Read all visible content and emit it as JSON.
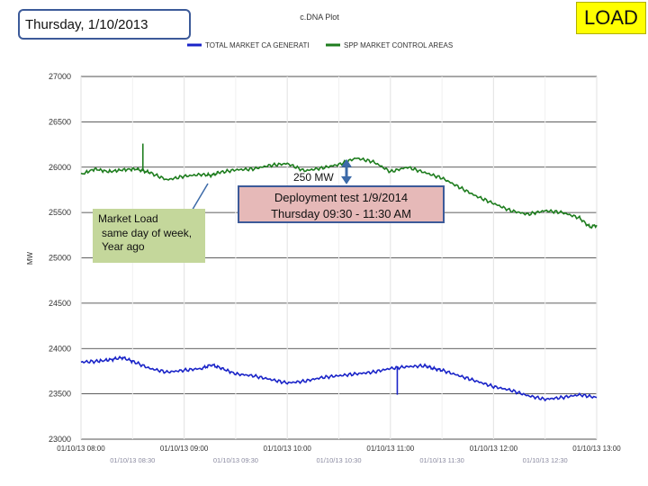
{
  "header": {
    "date": "Thursday, 1/10/2013",
    "badge": "LOAD"
  },
  "colors": {
    "green": "#1e7d1e",
    "blue": "#1a24c8",
    "grid": "#e8e8e8",
    "accent_box": "#3c5a99"
  },
  "chart_data": {
    "type": "line",
    "title": "c.DNA Plot",
    "ylabel": "MW",
    "ylim": [
      23000,
      27000
    ],
    "yticks": [
      23000,
      23500,
      24000,
      24500,
      25000,
      25500,
      26000,
      26500,
      27000
    ],
    "ytick_labels": [
      "23000",
      "23500",
      "24000",
      "24500",
      "25000",
      "25500",
      "26000",
      "26500",
      "27000"
    ],
    "x_range_minutes": [
      0,
      300
    ],
    "xticks_minutes": [
      0,
      60,
      120,
      180,
      240,
      300
    ],
    "xtick_labels": [
      "01/10/13 08:00",
      "01/10/13 09:00",
      "01/10/13 10:00",
      "01/10/13 11:00",
      "01/10/13 12:00",
      "01/10/13 13:00"
    ],
    "minor_xticks_minutes": [
      30,
      90,
      150,
      210,
      270
    ],
    "minor_xtick_labels": [
      "01/10/13 08:30",
      "01/10/13 09:30",
      "01/10/13 10:30",
      "01/10/13 11:30",
      "01/10/13 12:30"
    ],
    "series": [
      {
        "name": "TOTAL MARKET CA GENERATI",
        "color": "#1a24c8",
        "x": [
          0,
          10,
          18,
          24,
          30,
          40,
          50,
          60,
          70,
          76,
          82,
          90,
          100,
          110,
          120,
          130,
          140,
          150,
          160,
          170,
          180,
          190,
          200,
          205,
          210,
          220,
          230,
          240,
          250,
          260,
          270,
          280,
          290,
          300
        ],
        "y": [
          23850,
          23860,
          23880,
          23900,
          23860,
          23780,
          23740,
          23760,
          23780,
          23820,
          23780,
          23720,
          23700,
          23660,
          23620,
          23640,
          23680,
          23700,
          23720,
          23740,
          23780,
          23800,
          23810,
          23780,
          23760,
          23700,
          23640,
          23580,
          23540,
          23480,
          23440,
          23460,
          23490,
          23460
        ]
      },
      {
        "name": "SPP MARKET CONTROL AREAS",
        "color": "#1e7d1e",
        "x": [
          0,
          8,
          16,
          24,
          32,
          36,
          40,
          50,
          60,
          70,
          76,
          80,
          90,
          100,
          110,
          120,
          130,
          140,
          150,
          160,
          170,
          180,
          190,
          200,
          210,
          220,
          230,
          240,
          250,
          260,
          270,
          280,
          290,
          296,
          300
        ],
        "y": [
          25920,
          25980,
          25950,
          25970,
          25980,
          25960,
          25940,
          25860,
          25900,
          25920,
          25910,
          25940,
          25970,
          25980,
          26020,
          26040,
          25960,
          25990,
          26030,
          26100,
          26060,
          25950,
          26000,
          25940,
          25880,
          25780,
          25680,
          25600,
          25520,
          25480,
          25520,
          25500,
          25440,
          25340,
          25360
        ]
      }
    ],
    "spikes": [
      {
        "series": "SPP MARKET CONTROL AREAS",
        "x": 36,
        "y_from": 25960,
        "y_to": 26260
      },
      {
        "series": "TOTAL MARKET CA GENERATI",
        "x": 184,
        "y_from": 23800,
        "y_to": 23490
      }
    ],
    "annotations": {
      "market_load": [
        "Market Load",
        "same day  of week,",
        "Year ago"
      ],
      "deploy": [
        "Deployment test   1/9/2014",
        "Thursday  09:30  -  11:30  AM"
      ],
      "mw_delta": "250 MW"
    }
  }
}
